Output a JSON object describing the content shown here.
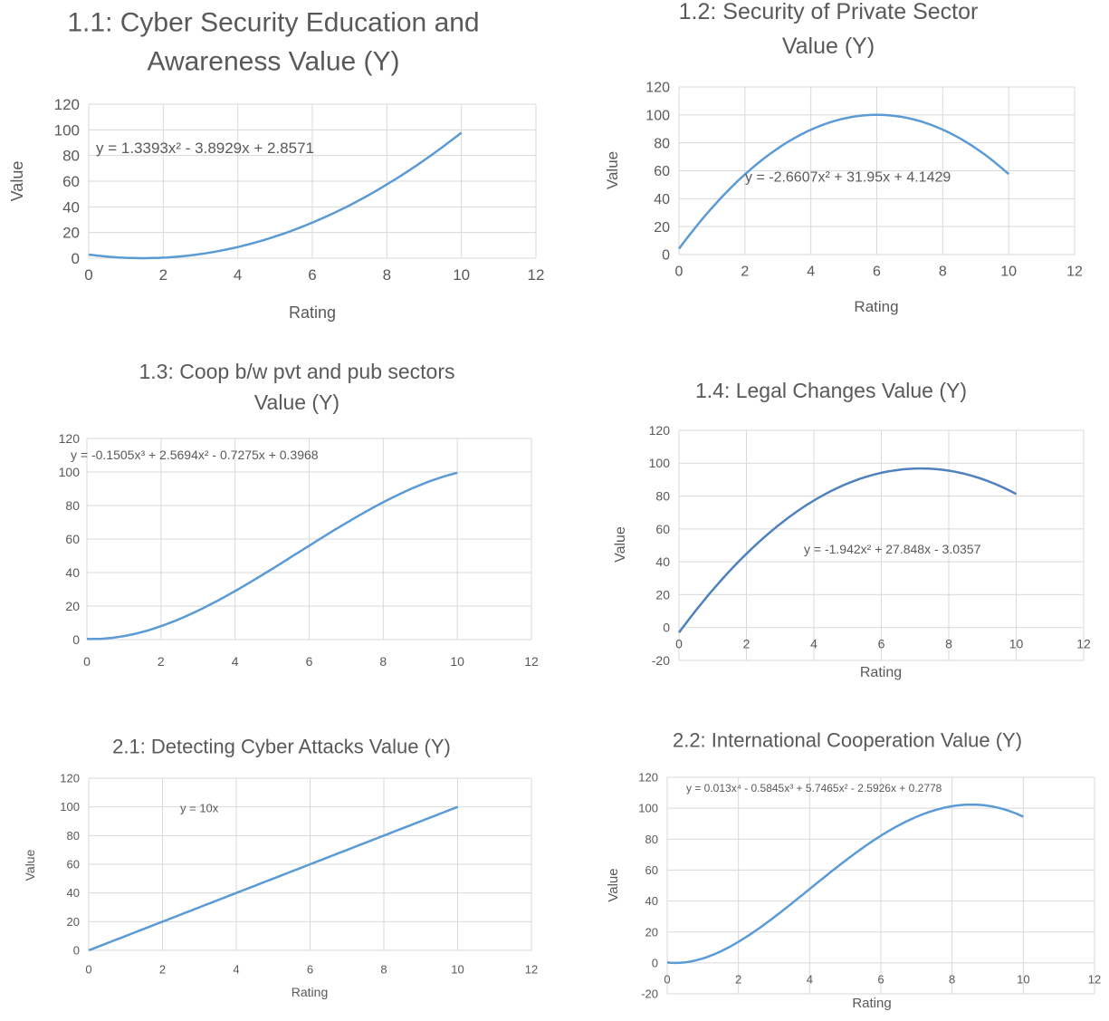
{
  "chart_data": [
    {
      "type": "line",
      "title_lines": [
        "1.1: Cyber Security Education and",
        "Awareness Value (Y)"
      ],
      "xlabel": "Rating",
      "ylabel": "Value",
      "xlim": [
        0,
        12
      ],
      "ylim": [
        0,
        120
      ],
      "xticks": [
        "0",
        "2",
        "4",
        "6",
        "8",
        "10",
        "12"
      ],
      "yticks": [
        "0",
        "20",
        "40",
        "60",
        "80",
        "100",
        "120"
      ],
      "grid": true,
      "trendline_label": "y = 1.3393x² - 3.8929x + 2.8571",
      "coefficients": [
        2.8571,
        -3.8929,
        1.3393
      ],
      "x_range": [
        0,
        10
      ],
      "color": "#5b9bd5"
    },
    {
      "type": "line",
      "title_lines": [
        "1.2: Security of Private Sector",
        "Value (Y)"
      ],
      "xlabel": "Rating",
      "ylabel": "Value",
      "xlim": [
        0,
        12
      ],
      "ylim": [
        0,
        120
      ],
      "xticks": [
        "0",
        "2",
        "4",
        "6",
        "8",
        "10",
        "12"
      ],
      "yticks": [
        "0",
        "20",
        "40",
        "60",
        "80",
        "100",
        "120"
      ],
      "grid": true,
      "trendline_label": "y = -2.6607x² + 31.95x + 4.1429",
      "coefficients": [
        4.1429,
        31.95,
        -2.6607
      ],
      "x_range": [
        0,
        10
      ],
      "color": "#5b9bd5"
    },
    {
      "type": "line",
      "title_lines": [
        "1.3: Coop b/w pvt and pub sectors",
        "Value (Y)"
      ],
      "xlabel": "",
      "ylabel": "",
      "xlim": [
        0,
        12
      ],
      "ylim": [
        0,
        120
      ],
      "xticks": [
        "0",
        "2",
        "4",
        "6",
        "8",
        "10",
        "12"
      ],
      "yticks": [
        "0",
        "20",
        "40",
        "60",
        "80",
        "100",
        "120"
      ],
      "grid": true,
      "trendline_label": "y = -0.1505x³ + 2.5694x² - 0.7275x + 0.3968",
      "coefficients": [
        0.3968,
        -0.7275,
        2.5694,
        -0.1505
      ],
      "x_range": [
        0,
        10
      ],
      "color": "#5b9bd5"
    },
    {
      "type": "line",
      "title_lines": [
        "1.4: Legal Changes Value (Y)"
      ],
      "xlabel": "Rating",
      "ylabel": "Value",
      "xlim": [
        0,
        12
      ],
      "ylim": [
        -20,
        120
      ],
      "xticks": [
        "0",
        "2",
        "4",
        "6",
        "8",
        "10",
        "12"
      ],
      "yticks": [
        "-20",
        "0",
        "20",
        "40",
        "60",
        "80",
        "100",
        "120"
      ],
      "grid": true,
      "trendline_label": "y = -1.942x² + 27.848x - 3.0357",
      "coefficients": [
        -3.0357,
        27.848,
        -1.942
      ],
      "x_range": [
        0,
        10
      ],
      "color": "#4f81bd"
    },
    {
      "type": "line",
      "title_lines": [
        "2.1: Detecting Cyber Attacks Value (Y)"
      ],
      "xlabel": "Rating",
      "ylabel": "Value",
      "xlim": [
        0,
        12
      ],
      "ylim": [
        0,
        120
      ],
      "xticks": [
        "0",
        "2",
        "4",
        "6",
        "8",
        "10",
        "12"
      ],
      "yticks": [
        "0",
        "20",
        "40",
        "60",
        "80",
        "100",
        "120"
      ],
      "grid": true,
      "trendline_label": "y = 10x",
      "coefficients": [
        0,
        10
      ],
      "x_range": [
        0,
        10
      ],
      "color": "#5b9bd5"
    },
    {
      "type": "line",
      "title_lines": [
        "2.2: International Cooperation Value (Y)"
      ],
      "xlabel": "Rating",
      "ylabel": "Value",
      "xlim": [
        0,
        12
      ],
      "ylim": [
        -20,
        120
      ],
      "xticks": [
        "0",
        "2",
        "4",
        "6",
        "8",
        "10",
        "12"
      ],
      "yticks": [
        "-20",
        "0",
        "20",
        "40",
        "60",
        "80",
        "100",
        "120"
      ],
      "grid": true,
      "trendline_label": "y = 0.013x⁴ - 0.5845x³ + 5.7465x² - 2.5926x + 0.2778",
      "coefficients": [
        0.2778,
        -2.5926,
        5.7465,
        -0.5845,
        0.013
      ],
      "x_range": [
        0,
        10
      ],
      "color": "#5b9bd5"
    }
  ]
}
